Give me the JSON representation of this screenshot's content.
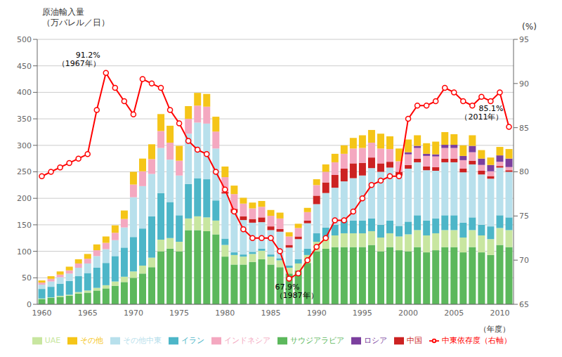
{
  "chart_data": {
    "type": "bar",
    "stacked": true,
    "title": "原油輸入量",
    "subtitle": "（万バレル／日）",
    "xlabel": "（年度）",
    "y2label": "(%)",
    "categories": [
      "1960",
      null,
      null,
      null,
      null,
      "1965",
      null,
      null,
      null,
      null,
      "1970",
      null,
      null,
      null,
      null,
      "1975",
      null,
      null,
      null,
      null,
      "1980",
      null,
      null,
      null,
      null,
      "1985",
      null,
      null,
      null,
      null,
      "1990",
      null,
      null,
      null,
      null,
      "1995",
      null,
      null,
      null,
      null,
      "2000",
      null,
      null,
      null,
      null,
      "2005",
      null,
      null,
      null,
      null,
      "2010",
      null
    ],
    "series": [
      {
        "name": "サウジアラビア",
        "color": "#5cb85c",
        "values": [
          10,
          12,
          14,
          16,
          20,
          22,
          26,
          30,
          35,
          42,
          50,
          58,
          70,
          100,
          105,
          100,
          140,
          140,
          138,
          132,
          90,
          75,
          75,
          80,
          85,
          75,
          70,
          58,
          64,
          78,
          100,
          105,
          108,
          108,
          108,
          108,
          112,
          100,
          108,
          102,
          100,
          108,
          98,
          102,
          108,
          108,
          98,
          108,
          98,
          93,
          112,
          108
        ]
      },
      {
        "name": "UAE",
        "color": "#c8e6a0",
        "values": [
          1,
          1,
          2,
          2,
          3,
          4,
          5,
          6,
          8,
          10,
          12,
          15,
          18,
          22,
          20,
          18,
          22,
          26,
          26,
          26,
          22,
          18,
          15,
          15,
          16,
          15,
          13,
          11,
          13,
          15,
          18,
          20,
          22,
          26,
          26,
          26,
          26,
          26,
          26,
          26,
          32,
          32,
          32,
          32,
          32,
          32,
          28,
          32,
          32,
          30,
          32,
          32
        ]
      },
      {
        "name": "イラン",
        "color": "#4db6c8",
        "values": [
          18,
          20,
          23,
          26,
          30,
          33,
          38,
          42,
          48,
          55,
          65,
          70,
          78,
          88,
          68,
          50,
          65,
          72,
          72,
          38,
          12,
          5,
          4,
          4,
          4,
          4,
          4,
          4,
          8,
          12,
          16,
          20,
          20,
          24,
          24,
          24,
          24,
          24,
          24,
          20,
          24,
          28,
          28,
          28,
          28,
          28,
          28,
          24,
          20,
          24,
          24,
          24
        ]
      },
      {
        "name": "その他中東",
        "color": "#b8e0ec",
        "values": [
          8,
          10,
          12,
          14,
          16,
          18,
          22,
          26,
          30,
          38,
          75,
          80,
          80,
          85,
          80,
          75,
          95,
          105,
          105,
          98,
          85,
          75,
          65,
          55,
          50,
          46,
          50,
          34,
          38,
          48,
          55,
          65,
          70,
          74,
          80,
          85,
          95,
          100,
          100,
          95,
          100,
          100,
          95,
          90,
          100,
          100,
          95,
          100,
          95,
          90,
          90,
          86
        ]
      },
      {
        "name": "中国",
        "color": "#cc2222",
        "values": [
          0,
          0,
          0,
          0,
          0,
          0,
          0,
          0,
          0,
          0,
          0,
          0,
          0,
          0,
          0,
          0,
          0,
          0,
          0,
          0,
          3,
          7,
          7,
          7,
          9,
          7,
          5,
          5,
          5,
          5,
          16,
          20,
          24,
          24,
          28,
          24,
          20,
          16,
          11,
          7,
          7,
          7,
          7,
          7,
          7,
          7,
          7,
          7,
          7,
          5,
          3,
          3
        ]
      },
      {
        "name": "インドネシア",
        "color": "#f4a8c0",
        "values": [
          4,
          5,
          5,
          6,
          8,
          9,
          11,
          12,
          14,
          16,
          24,
          28,
          28,
          32,
          32,
          28,
          28,
          32,
          32,
          32,
          28,
          28,
          24,
          20,
          20,
          20,
          20,
          16,
          16,
          16,
          20,
          20,
          24,
          28,
          28,
          28,
          28,
          28,
          24,
          20,
          20,
          20,
          20,
          20,
          20,
          20,
          16,
          16,
          11,
          9,
          8,
          6
        ]
      },
      {
        "name": "ロシア",
        "color": "#7b3f9e",
        "values": [
          0,
          0,
          0,
          0,
          0,
          0,
          0,
          0,
          0,
          0,
          0,
          0,
          0,
          0,
          0,
          0,
          0,
          0,
          0,
          0,
          0,
          0,
          0,
          0,
          0,
          0,
          0,
          0,
          0,
          0,
          0,
          0,
          0,
          0,
          0,
          0,
          0,
          0,
          0,
          0,
          4,
          4,
          4,
          4,
          6,
          6,
          8,
          12,
          12,
          12,
          12,
          16
        ]
      },
      {
        "name": "その他",
        "color": "#f5c518",
        "values": [
          4,
          5,
          6,
          7,
          8,
          9,
          11,
          12,
          14,
          16,
          24,
          24,
          28,
          32,
          32,
          28,
          24,
          24,
          24,
          28,
          20,
          16,
          11,
          11,
          11,
          11,
          11,
          8,
          8,
          8,
          11,
          14,
          16,
          16,
          20,
          24,
          24,
          28,
          24,
          24,
          24,
          20,
          20,
          24,
          24,
          20,
          20,
          20,
          16,
          14,
          16,
          18
        ]
      },
      {
        "name": "中東依存度（右軸）",
        "type": "line",
        "axis": "y2",
        "color": "red",
        "marker": "circle",
        "values": [
          79.5,
          80.0,
          80.5,
          81.0,
          81.5,
          82.0,
          87.0,
          91.2,
          89.5,
          88.0,
          86.5,
          90.5,
          90.0,
          89.5,
          87.0,
          85.5,
          83.5,
          82.5,
          82.0,
          80.0,
          78.0,
          75.5,
          73.5,
          72.5,
          72.5,
          72.5,
          71.0,
          67.9,
          68.5,
          70.0,
          71.5,
          72.5,
          74.5,
          74.5,
          75.5,
          77.0,
          78.5,
          79.0,
          79.5,
          79.5,
          86.0,
          87.5,
          87.5,
          88.0,
          89.5,
          89.0,
          88.0,
          87.5,
          88.5,
          88.0,
          89.0,
          85.1
        ]
      }
    ],
    "ylim": [
      0,
      500
    ],
    "yticks": [
      0,
      50,
      100,
      150,
      200,
      250,
      300,
      350,
      400,
      450,
      500
    ],
    "y2lim": [
      65,
      95
    ],
    "y2ticks": [
      65,
      70,
      75,
      80,
      85,
      90,
      95
    ],
    "grid": true,
    "legend": "bottom",
    "annotations": [
      {
        "text": "91.2%\n（1967年）",
        "x": 7,
        "y": 91.2
      },
      {
        "text": "67.9%\n（1987年）",
        "x": 27,
        "y": 67.9
      },
      {
        "text": "85.1%\n（2011年）",
        "x": 51,
        "y": 85.1
      }
    ]
  }
}
